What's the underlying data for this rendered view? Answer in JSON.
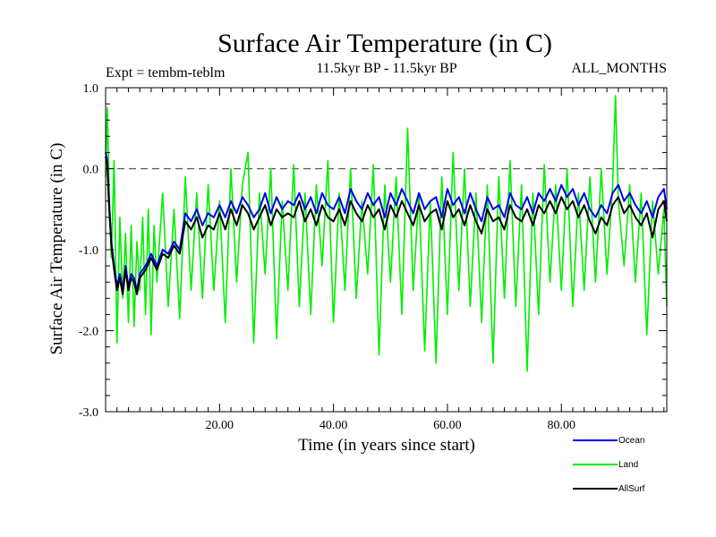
{
  "chart_data": {
    "type": "line",
    "title": "Surface Air Temperature (in C)",
    "subtitle_left": "Expt = tembm-teblm",
    "subtitle_center": "11.5kyr BP - 11.5kyr BP",
    "subtitle_right": "ALL_MONTHS",
    "xlabel": "Time (in years since start)",
    "ylabel": "Surface Air Temperature (in C)",
    "xlim": [
      0,
      98.5
    ],
    "ylim": [
      -3.0,
      1.0
    ],
    "x_ticks": [
      20,
      40,
      60,
      80
    ],
    "x_tick_labels": [
      "20.00",
      "40.00",
      "60.00",
      "80.00"
    ],
    "y_ticks": [
      1.0,
      0.0,
      -1.0,
      -2.0,
      -3.0
    ],
    "y_tick_labels": [
      "1.0",
      "0.0",
      "-1.0",
      "-2.0",
      "-3.0"
    ],
    "zero_line": 0.0,
    "series": [
      {
        "name": "Land",
        "color": "#00ee00",
        "x": [
          0,
          0.3,
          0.6,
          1,
          1.5,
          2,
          2.5,
          3,
          3.5,
          4,
          4.5,
          5,
          5.5,
          6,
          6.5,
          7,
          7.5,
          8,
          8.5,
          9,
          10,
          11,
          12,
          13,
          14,
          15,
          16,
          17,
          18,
          19,
          20,
          21,
          22,
          23,
          24,
          25,
          26,
          27,
          28,
          29,
          30,
          31,
          32,
          33,
          34,
          35,
          36,
          37,
          38,
          39,
          40,
          41,
          42,
          43,
          44,
          45,
          46,
          47,
          48,
          49,
          50,
          51,
          52,
          53,
          54,
          55,
          56,
          57,
          58,
          59,
          60,
          61,
          62,
          63,
          64,
          65,
          66,
          67,
          68,
          69,
          70,
          71,
          72,
          73,
          74,
          75,
          76,
          77,
          78,
          79,
          80,
          81,
          82,
          83,
          84,
          85,
          86,
          87,
          88,
          89,
          89.5,
          90,
          91,
          92,
          93,
          94,
          95,
          96,
          97,
          98,
          98.5
        ],
        "values": [
          -0.1,
          0.75,
          -0.2,
          -1.1,
          0.1,
          -2.15,
          -0.6,
          -1.6,
          -0.8,
          -1.9,
          -0.7,
          -1.95,
          -0.9,
          -1.5,
          -0.6,
          -1.8,
          -0.5,
          -2.05,
          -0.7,
          -1.4,
          -0.3,
          -1.7,
          -0.5,
          -1.85,
          -0.1,
          -1.5,
          -0.3,
          -1.6,
          -0.2,
          -1.5,
          -0.4,
          -1.9,
          0.0,
          -1.4,
          -0.2,
          0.2,
          -2.15,
          -0.3,
          -1.3,
          0.0,
          -2.1,
          -0.4,
          -1.5,
          0.05,
          -1.7,
          -0.3,
          -1.8,
          -0.2,
          -1.2,
          0.1,
          -1.9,
          -0.3,
          -1.5,
          0.0,
          -1.6,
          -0.4,
          -1.3,
          0.05,
          -2.3,
          -0.2,
          -1.4,
          -0.1,
          -1.8,
          0.5,
          -1.5,
          -0.3,
          -2.25,
          -0.4,
          -2.4,
          -0.1,
          -1.8,
          0.2,
          -1.5,
          0.0,
          -1.7,
          -0.3,
          -1.9,
          -0.2,
          -2.4,
          -0.1,
          -1.6,
          0.1,
          -1.7,
          -0.2,
          -2.5,
          -0.3,
          -1.8,
          0.05,
          -1.4,
          -0.2,
          -1.5,
          0.0,
          -1.7,
          -0.3,
          -1.5,
          -0.1,
          -1.4,
          0.0,
          -1.3,
          -0.2,
          0.9,
          -0.4,
          -1.2,
          -0.2,
          -1.4,
          -0.3,
          -2.05,
          -0.4,
          -1.3,
          -0.5,
          -1.7
        ]
      },
      {
        "name": "Ocean",
        "color": "#0000ee",
        "x": [
          0,
          0.3,
          0.6,
          1,
          1.5,
          2,
          2.5,
          3,
          3.5,
          4,
          4.5,
          5,
          5.5,
          6,
          7,
          8,
          9,
          10,
          11,
          12,
          13,
          14,
          15,
          16,
          17,
          18,
          19,
          20,
          21,
          22,
          23,
          24,
          25,
          26,
          27,
          28,
          29,
          30,
          31,
          32,
          33,
          34,
          35,
          36,
          37,
          38,
          39,
          40,
          41,
          42,
          43,
          44,
          45,
          46,
          47,
          48,
          49,
          50,
          51,
          52,
          53,
          54,
          55,
          56,
          57,
          58,
          59,
          60,
          61,
          62,
          63,
          64,
          65,
          66,
          67,
          68,
          69,
          70,
          71,
          72,
          73,
          74,
          75,
          76,
          77,
          78,
          79,
          80,
          81,
          82,
          83,
          84,
          85,
          86,
          87,
          88,
          89,
          90,
          91,
          92,
          93,
          94,
          95,
          96,
          97,
          98,
          98.5
        ],
        "values": [
          0.2,
          0.1,
          -0.4,
          -0.9,
          -1.2,
          -1.45,
          -1.3,
          -1.5,
          -1.2,
          -1.45,
          -1.3,
          -1.35,
          -1.5,
          -1.3,
          -1.2,
          -1.05,
          -1.2,
          -1.0,
          -1.05,
          -0.9,
          -1.0,
          -0.55,
          -0.65,
          -0.5,
          -0.7,
          -0.55,
          -0.6,
          -0.45,
          -0.6,
          -0.4,
          -0.55,
          -0.35,
          -0.45,
          -0.6,
          -0.5,
          -0.3,
          -0.55,
          -0.35,
          -0.5,
          -0.4,
          -0.45,
          -0.3,
          -0.5,
          -0.35,
          -0.55,
          -0.3,
          -0.45,
          -0.5,
          -0.35,
          -0.55,
          -0.25,
          -0.4,
          -0.5,
          -0.3,
          -0.45,
          -0.35,
          -0.6,
          -0.3,
          -0.45,
          -0.25,
          -0.4,
          -0.55,
          -0.3,
          -0.5,
          -0.4,
          -0.35,
          -0.6,
          -0.25,
          -0.45,
          -0.35,
          -0.55,
          -0.3,
          -0.5,
          -0.65,
          -0.35,
          -0.5,
          -0.45,
          -0.6,
          -0.3,
          -0.45,
          -0.5,
          -0.35,
          -0.55,
          -0.3,
          -0.4,
          -0.25,
          -0.4,
          -0.2,
          -0.35,
          -0.25,
          -0.45,
          -0.3,
          -0.5,
          -0.6,
          -0.45,
          -0.55,
          -0.3,
          -0.2,
          -0.4,
          -0.3,
          -0.45,
          -0.55,
          -0.4,
          -0.6,
          -0.35,
          -0.25,
          -0.5
        ]
      },
      {
        "name": "AllSurf",
        "color": "#000000",
        "x": [
          0,
          0.3,
          0.6,
          1,
          1.5,
          2,
          2.5,
          3,
          3.5,
          4,
          4.5,
          5,
          5.5,
          6,
          7,
          8,
          9,
          10,
          11,
          12,
          13,
          14,
          15,
          16,
          17,
          18,
          19,
          20,
          21,
          22,
          23,
          24,
          25,
          26,
          27,
          28,
          29,
          30,
          31,
          32,
          33,
          34,
          35,
          36,
          37,
          38,
          39,
          40,
          41,
          42,
          43,
          44,
          45,
          46,
          47,
          48,
          49,
          50,
          51,
          52,
          53,
          54,
          55,
          56,
          57,
          58,
          59,
          60,
          61,
          62,
          63,
          64,
          65,
          66,
          67,
          68,
          69,
          70,
          71,
          72,
          73,
          74,
          75,
          76,
          77,
          78,
          79,
          80,
          81,
          82,
          83,
          84,
          85,
          86,
          87,
          88,
          89,
          90,
          91,
          92,
          93,
          94,
          95,
          96,
          97,
          98,
          98.5
        ],
        "values": [
          0.15,
          0.05,
          -0.45,
          -0.95,
          -1.25,
          -1.5,
          -1.35,
          -1.55,
          -1.25,
          -1.5,
          -1.35,
          -1.4,
          -1.55,
          -1.35,
          -1.25,
          -1.1,
          -1.25,
          -1.05,
          -1.1,
          -0.95,
          -1.05,
          -0.65,
          -0.75,
          -0.6,
          -0.85,
          -0.7,
          -0.75,
          -0.55,
          -0.75,
          -0.5,
          -0.7,
          -0.45,
          -0.55,
          -0.75,
          -0.6,
          -0.45,
          -0.7,
          -0.5,
          -0.6,
          -0.55,
          -0.6,
          -0.4,
          -0.65,
          -0.5,
          -0.7,
          -0.45,
          -0.6,
          -0.65,
          -0.5,
          -0.7,
          -0.4,
          -0.55,
          -0.65,
          -0.45,
          -0.6,
          -0.5,
          -0.75,
          -0.45,
          -0.6,
          -0.4,
          -0.55,
          -0.7,
          -0.45,
          -0.65,
          -0.55,
          -0.5,
          -0.75,
          -0.4,
          -0.6,
          -0.5,
          -0.7,
          -0.45,
          -0.65,
          -0.8,
          -0.5,
          -0.65,
          -0.6,
          -0.75,
          -0.45,
          -0.6,
          -0.65,
          -0.5,
          -0.7,
          -0.45,
          -0.55,
          -0.4,
          -0.55,
          -0.35,
          -0.5,
          -0.4,
          -0.6,
          -0.45,
          -0.65,
          -0.8,
          -0.6,
          -0.7,
          -0.45,
          -0.35,
          -0.55,
          -0.45,
          -0.6,
          -0.7,
          -0.55,
          -0.85,
          -0.5,
          -0.4,
          -0.65
        ]
      }
    ],
    "legend": [
      "Ocean",
      "Land",
      "AllSurf"
    ],
    "legend_placement": "bottom-right"
  }
}
